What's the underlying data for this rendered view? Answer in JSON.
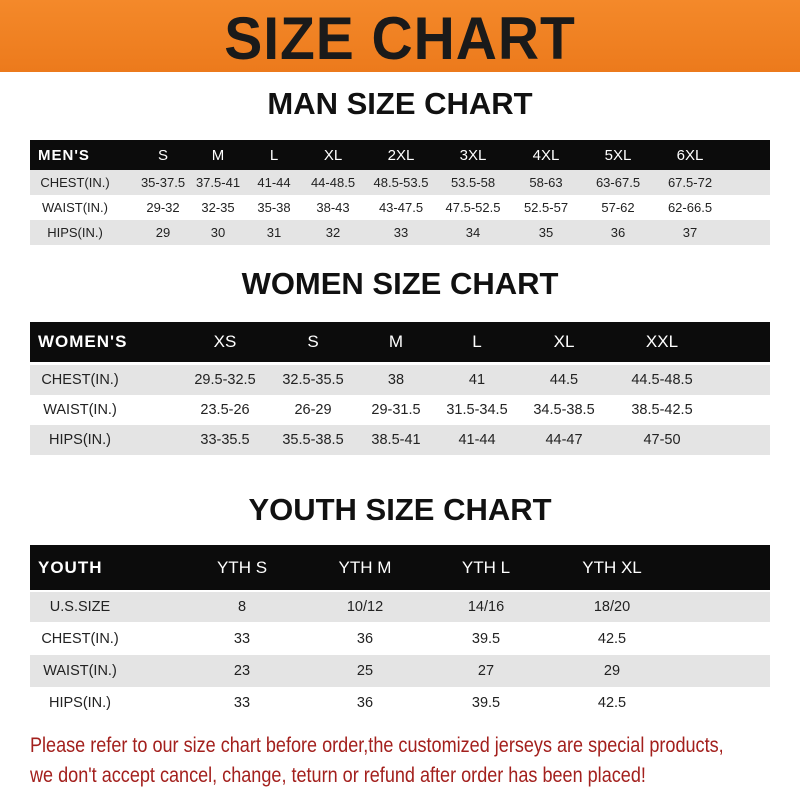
{
  "title": "SIZE CHART",
  "men": {
    "title": "MAN SIZE CHART",
    "header": [
      "MEN'S",
      "S",
      "M",
      "L",
      "XL",
      "2XL",
      "3XL",
      "4XL",
      "5XL",
      "6XL"
    ],
    "rows": [
      [
        "CHEST(IN.)",
        "35-37.5",
        "37.5-41",
        "41-44",
        "44-48.5",
        "48.5-53.5",
        "53.5-58",
        "58-63",
        "63-67.5",
        "67.5-72"
      ],
      [
        "WAIST(IN.)",
        "29-32",
        "32-35",
        "35-38",
        "38-43",
        "43-47.5",
        "47.5-52.5",
        "52.5-57",
        "57-62",
        "62-66.5"
      ],
      [
        "HIPS(IN.)",
        "29",
        "30",
        "31",
        "32",
        "33",
        "34",
        "35",
        "36",
        "37"
      ]
    ]
  },
  "women": {
    "title": "WOMEN SIZE CHART",
    "header": [
      "WOMEN'S",
      "XS",
      "S",
      "M",
      "L",
      "XL",
      "XXL"
    ],
    "rows": [
      [
        "CHEST(IN.)",
        "29.5-32.5",
        "32.5-35.5",
        "38",
        "41",
        "44.5",
        "44.5-48.5"
      ],
      [
        "WAIST(IN.)",
        "23.5-26",
        "26-29",
        "29-31.5",
        "31.5-34.5",
        "34.5-38.5",
        "38.5-42.5"
      ],
      [
        "HIPS(IN.)",
        "33-35.5",
        "35.5-38.5",
        "38.5-41",
        "41-44",
        "44-47",
        "47-50"
      ]
    ]
  },
  "youth": {
    "title": "YOUTH SIZE CHART",
    "header": [
      "YOUTH",
      "YTH S",
      "YTH M",
      "YTH L",
      "YTH XL"
    ],
    "rows": [
      [
        "U.S.SIZE",
        "8",
        "10/12",
        "14/16",
        "18/20"
      ],
      [
        "CHEST(IN.)",
        "33",
        "36",
        "39.5",
        "42.5"
      ],
      [
        "WAIST(IN.)",
        "23",
        "25",
        "27",
        "29"
      ],
      [
        "HIPS(IN.)",
        "33",
        "36",
        "39.5",
        "42.5"
      ]
    ]
  },
  "notice": {
    "line1": "Please refer to our size chart before order,the customized jerseys are special products,",
    "line2": "we don't accept cancel, change, teturn or refund after order has been placed!"
  },
  "colors": {
    "banner": "#ef7f22",
    "header_row": "#0c0c0c",
    "stripe": "#e4e4e4",
    "notice": "#a3201d"
  }
}
